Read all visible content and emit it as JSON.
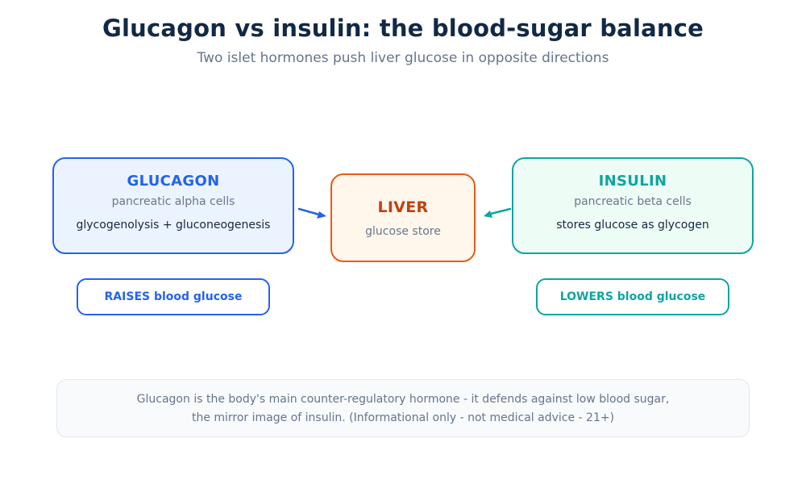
{
  "header": {
    "title": "Glucagon vs insulin: the blood-sugar balance",
    "subtitle": "Two islet hormones push liver glucose in opposite directions"
  },
  "nodes": {
    "glucagon": {
      "name": "GLUCAGON",
      "source": "pancreatic alpha cells",
      "action": "glycogenolysis + gluconeogenesis",
      "effect": "RAISES blood glucose",
      "color": "#2463eb"
    },
    "liver": {
      "name": "LIVER",
      "role": "glucose store",
      "color": "#e65c14"
    },
    "insulin": {
      "name": "INSULIN",
      "source": "pancreatic beta cells",
      "action": "stores glucose as glycogen",
      "effect": "LOWERS blood glucose",
      "color": "#0fa5a0"
    }
  },
  "note": {
    "line1": "Glucagon is the body's main counter-regulatory hormone - it defends against low blood sugar,",
    "line2": "the mirror image of insulin. (Informational only - not medical advice - 21+)"
  }
}
